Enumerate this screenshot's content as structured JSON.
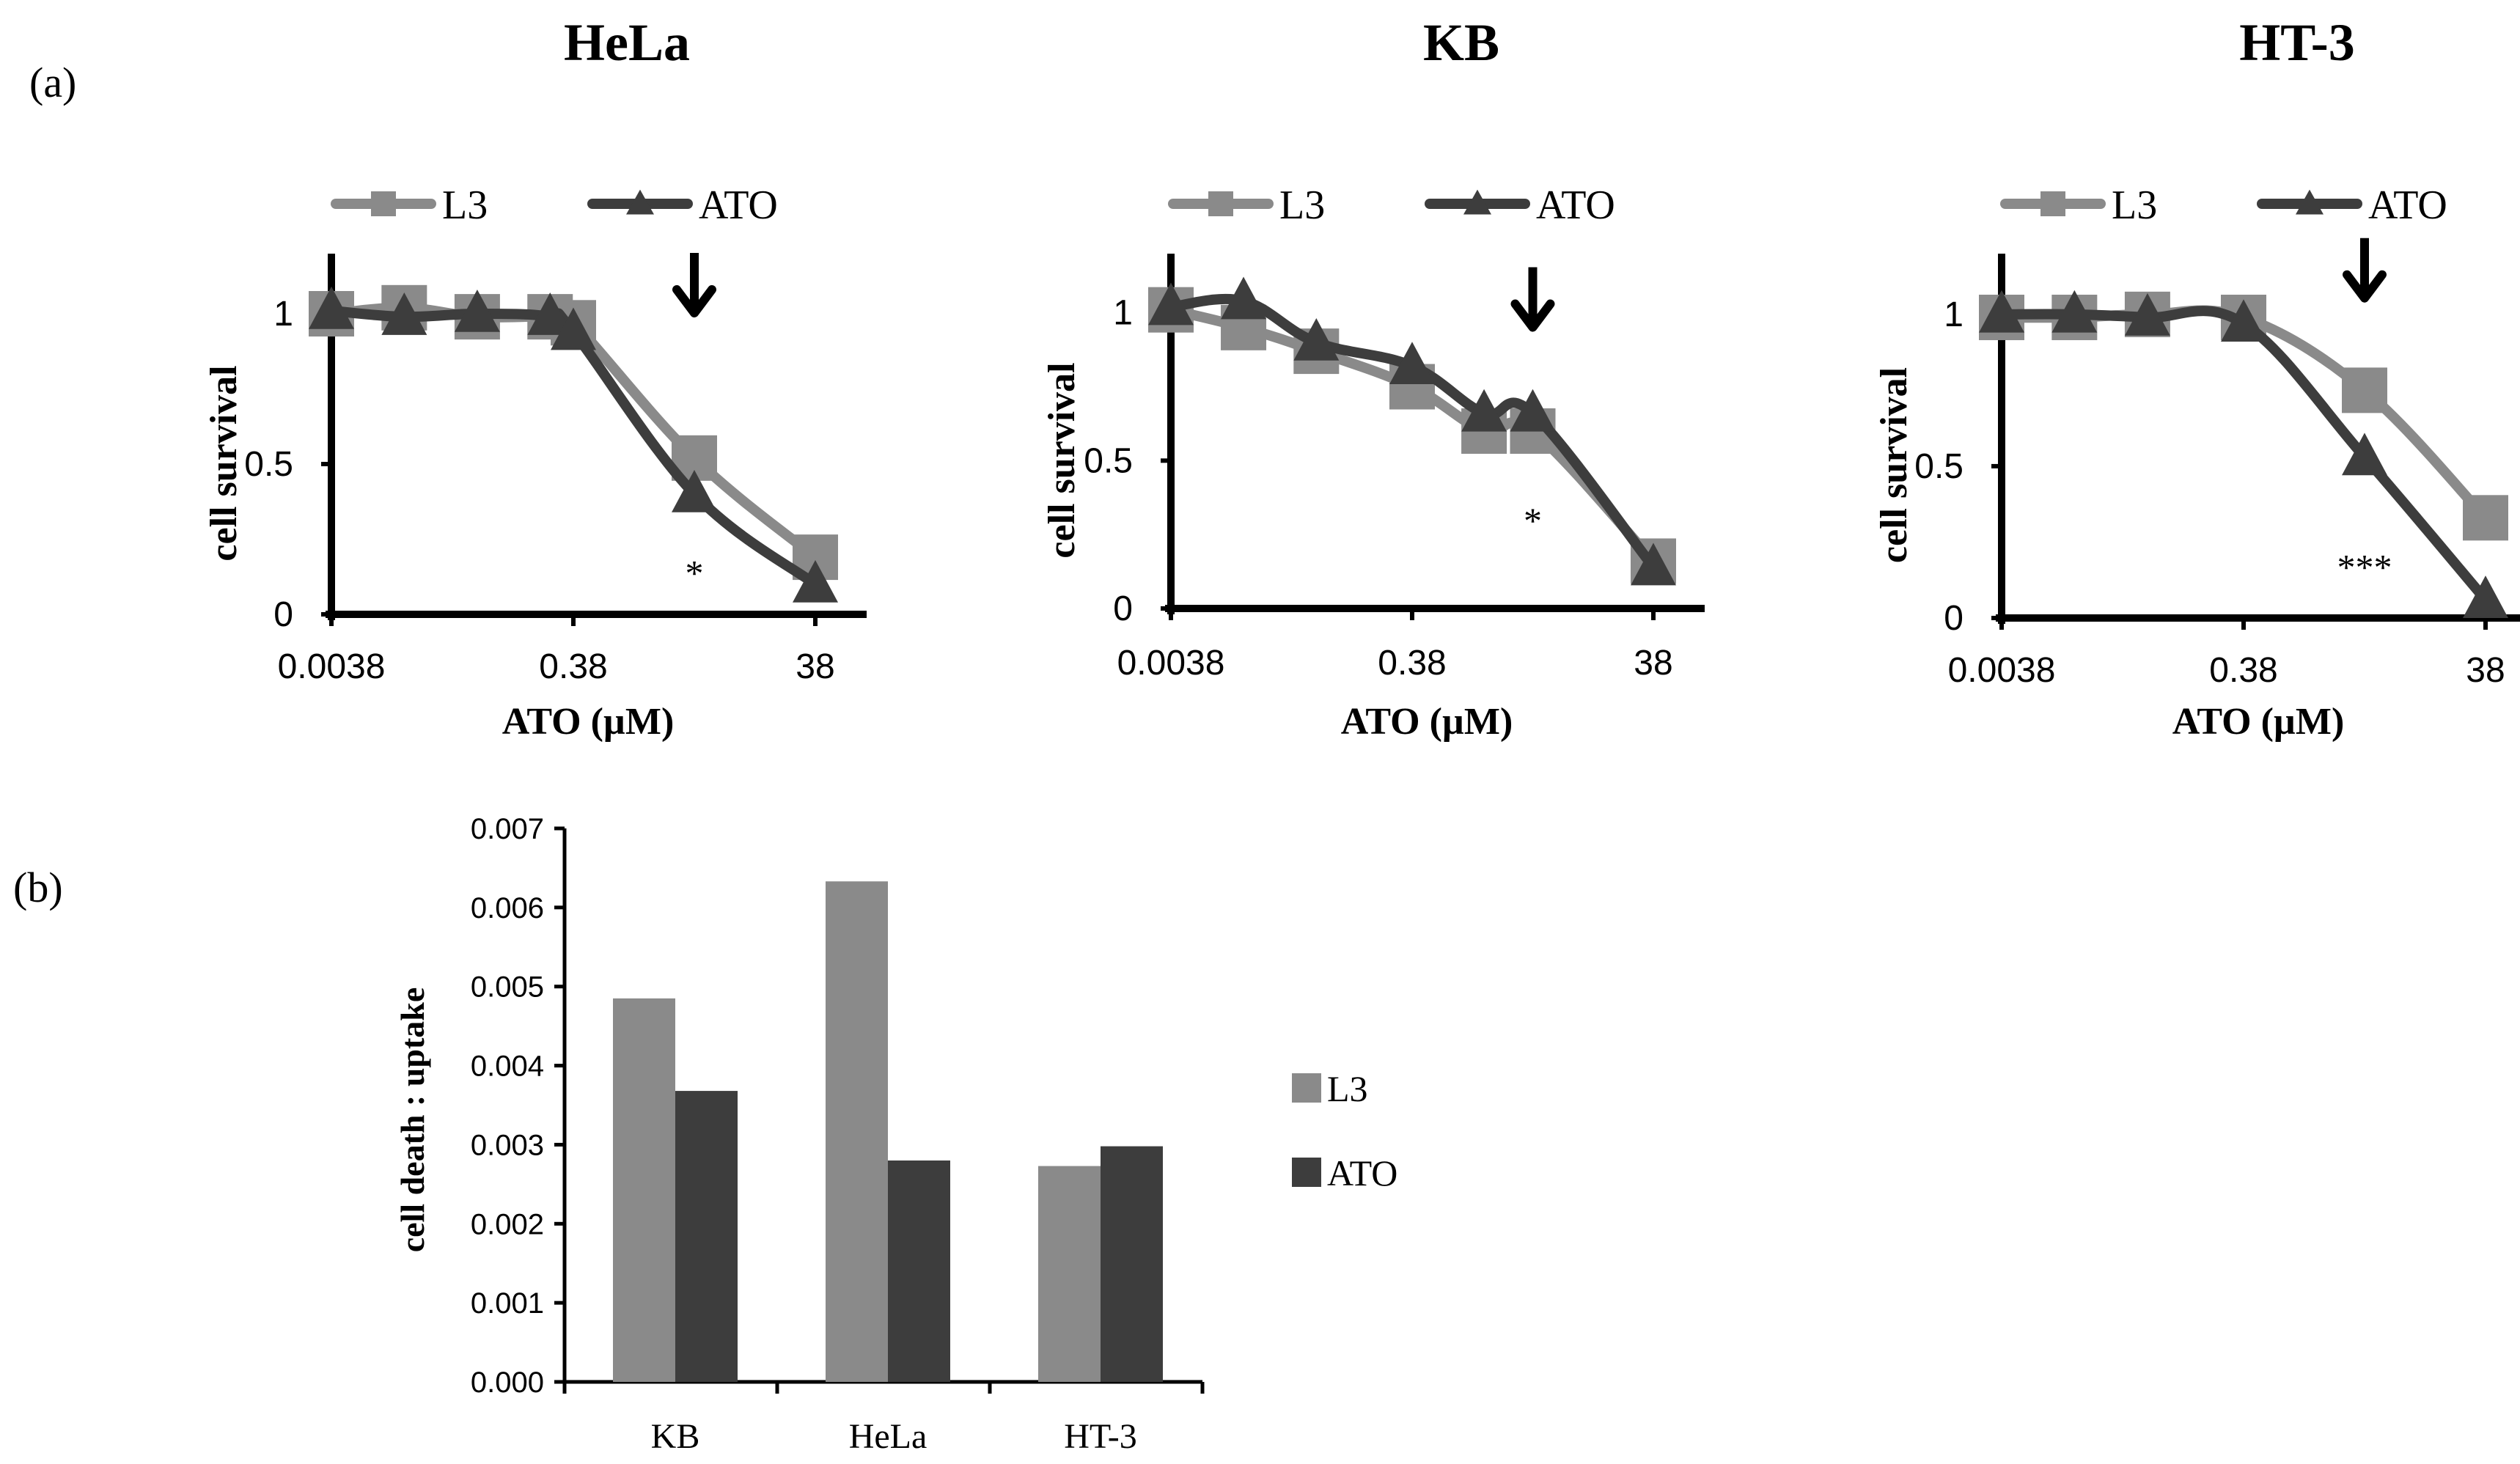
{
  "figure": {
    "panel_a_label": "(a)",
    "panel_b_label": "(b)"
  },
  "colors": {
    "l3": "#8a8a8a",
    "ato": "#3d3d3d",
    "axis": "#000000",
    "arrow": "#000000"
  },
  "chart_data": [
    {
      "type": "line",
      "title": "HeLa",
      "xlabel": "ATO (µM)",
      "ylabel": "cell survival",
      "x_scale": "log10",
      "x_ticks": [
        0.0038,
        0.38,
        38
      ],
      "x_tick_labels": [
        "0.0038",
        "0.38",
        "38"
      ],
      "y_ticks": [
        0,
        0.5,
        1
      ],
      "y_tick_labels": [
        "0",
        "0.5",
        "1"
      ],
      "ylim": [
        0,
        1.2
      ],
      "x": [
        0.0038,
        0.0152,
        0.061,
        0.244,
        0.38,
        3.8,
        38
      ],
      "series": [
        {
          "name": "L3",
          "marker": "square",
          "values": [
            1.0,
            1.02,
            0.99,
            0.99,
            0.97,
            0.52,
            0.19
          ]
        },
        {
          "name": "ATO",
          "marker": "triangle",
          "values": [
            1.01,
            0.99,
            1.0,
            0.99,
            0.94,
            0.4,
            0.1
          ]
        }
      ],
      "annotations": [
        {
          "text": "*",
          "x": 3.8,
          "y": 0.15
        },
        {
          "type": "arrow",
          "x": 3.8,
          "y": 1.1
        }
      ]
    },
    {
      "type": "line",
      "title": "KB",
      "xlabel": "ATO (µM)",
      "ylabel": "cell survival",
      "x_scale": "log10",
      "x_ticks": [
        0.0038,
        0.38,
        38
      ],
      "x_tick_labels": [
        "0.0038",
        "0.38",
        "38"
      ],
      "y_ticks": [
        0,
        0.5,
        1
      ],
      "y_tick_labels": [
        "0",
        "0.5",
        "1"
      ],
      "ylim": [
        0,
        1.2
      ],
      "x": [
        0.0038,
        0.0152,
        0.061,
        0.38,
        1.5,
        3.8,
        38
      ],
      "series": [
        {
          "name": "L3",
          "marker": "square",
          "values": [
            1.01,
            0.95,
            0.87,
            0.75,
            0.6,
            0.6,
            0.16
          ]
        },
        {
          "name": "ATO",
          "marker": "triangle",
          "values": [
            1.02,
            1.04,
            0.9,
            0.82,
            0.66,
            0.66,
            0.14
          ]
        }
      ],
      "annotations": [
        {
          "text": "*",
          "x": 3.8,
          "y": 0.31
        },
        {
          "type": "arrow",
          "x": 3.8,
          "y": 1.05
        }
      ]
    },
    {
      "type": "line",
      "title": "HT-3",
      "xlabel": "ATO (µM)",
      "ylabel": "cell survival",
      "x_scale": "log10",
      "x_ticks": [
        0.0038,
        0.38,
        38
      ],
      "x_tick_labels": [
        "0.0038",
        "0.38",
        "38"
      ],
      "y_ticks": [
        0,
        0.5,
        1
      ],
      "y_tick_labels": [
        "0",
        "0.5",
        "1"
      ],
      "ylim": [
        0,
        1.2
      ],
      "x": [
        0.0038,
        0.0152,
        0.061,
        0.38,
        3.8,
        38
      ],
      "series": [
        {
          "name": "L3",
          "marker": "square",
          "values": [
            0.99,
            0.99,
            1.0,
            0.99,
            0.75,
            0.33
          ]
        },
        {
          "name": "ATO",
          "marker": "triangle",
          "values": [
            1.0,
            1.0,
            0.99,
            0.97,
            0.53,
            0.06
          ]
        }
      ],
      "annotations": [
        {
          "text": "***",
          "x": 3.8,
          "y": 0.18
        },
        {
          "type": "arrow",
          "x": 3.8,
          "y": 1.15
        }
      ]
    },
    {
      "type": "bar",
      "title": "",
      "xlabel": "",
      "ylabel": "cell death : uptake",
      "categories": [
        "KB",
        "HeLa",
        "HT-3"
      ],
      "y_ticks": [
        0,
        0.001,
        0.002,
        0.003,
        0.004,
        0.005,
        0.006,
        0.007
      ],
      "y_tick_labels": [
        "0.000",
        "0.001",
        "0.002",
        "0.003",
        "0.004",
        "0.005",
        "0.006",
        "0.007"
      ],
      "ylim": [
        0,
        0.007
      ],
      "legend_position": "right",
      "series": [
        {
          "name": "L3",
          "values": [
            0.00485,
            0.00633,
            0.00273
          ]
        },
        {
          "name": "ATO",
          "values": [
            0.00368,
            0.0028,
            0.00298
          ]
        }
      ]
    }
  ]
}
